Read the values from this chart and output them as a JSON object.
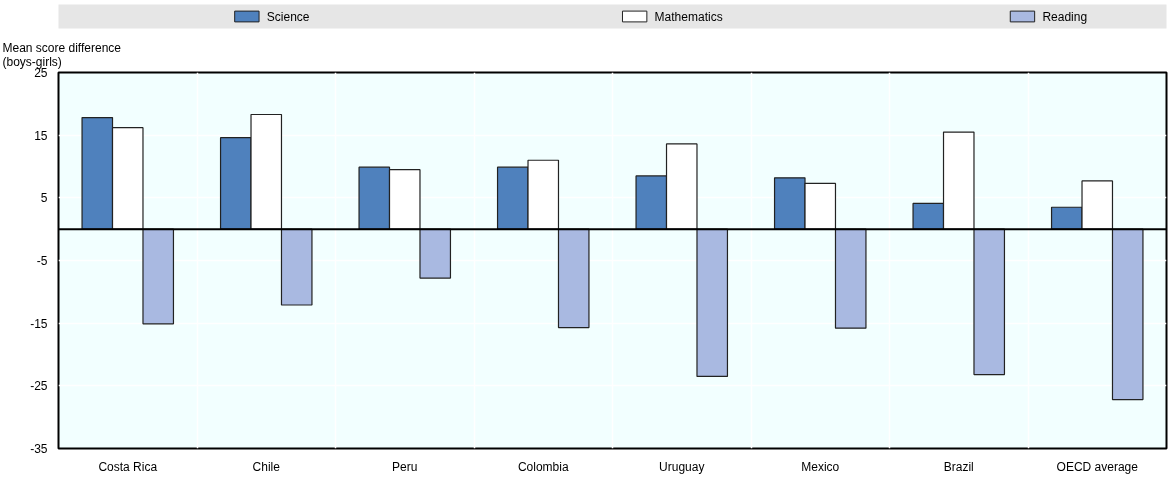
{
  "chart_data": {
    "type": "bar",
    "ylabel": "Mean score difference\n(boys-girls)",
    "categories": [
      "Costa Rica",
      "Chile",
      "Peru",
      "Colombia",
      "Uruguay",
      "Mexico",
      "Brazil",
      "OECD average"
    ],
    "series": [
      {
        "name": "Science",
        "color": "#4f81bd",
        "values": [
          17.8,
          14.6,
          9.9,
          9.9,
          8.5,
          8.2,
          4.1,
          3.5
        ]
      },
      {
        "name": "Mathematics",
        "color": "#ffffff",
        "values": [
          16.2,
          18.3,
          9.5,
          11.0,
          13.6,
          7.3,
          15.5,
          7.7
        ]
      },
      {
        "name": "Reading",
        "color": "#a9b9e1",
        "values": [
          -15.1,
          -12.1,
          -7.8,
          -15.7,
          -23.5,
          -15.8,
          -23.2,
          -27.2
        ]
      }
    ],
    "ylim": [
      -35,
      25
    ],
    "yticks": [
      -35,
      -25,
      -15,
      -5,
      5,
      15,
      25
    ],
    "grid": true,
    "legend": "top"
  }
}
